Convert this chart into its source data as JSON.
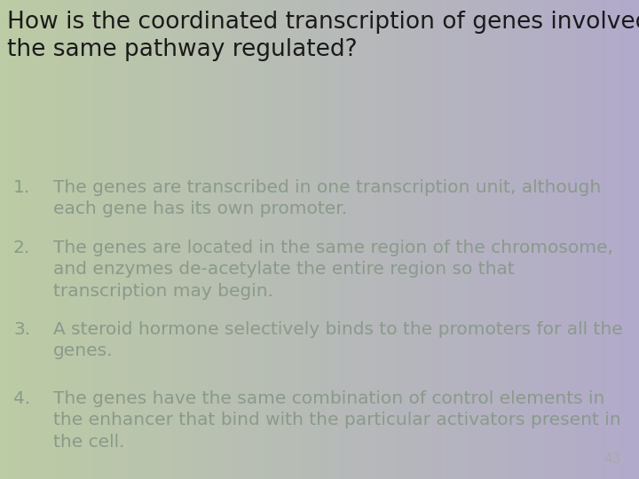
{
  "title": "How is the coordinated transcription of genes involved in\nthe same pathway regulated?",
  "title_fontsize": 19,
  "title_color": "#1a1a1a",
  "items": [
    {
      "number": "1.",
      "text": "The genes are transcribed in one transcription unit, although\neach gene has its own promoter."
    },
    {
      "number": "2.",
      "text": "The genes are located in the same region of the chromosome,\nand enzymes de-acetylate the entire region so that\ntranscription may begin."
    },
    {
      "number": "3.",
      "text": "A steroid hormone selectively binds to the promoters for all the\ngenes."
    },
    {
      "number": "4.",
      "text": "The genes have the same combination of control elements in\nthe enhancer that bind with the particular activators present in\nthe cell."
    }
  ],
  "item_fontsize": 14.5,
  "item_color": "#8a9a8a",
  "page_number": "43",
  "page_number_color": "#aaaaaa",
  "page_number_fontsize": 11,
  "bg_color_left": "#bccca4",
  "bg_color_right": "#b2aacb",
  "font_family": "DejaVu Sans"
}
